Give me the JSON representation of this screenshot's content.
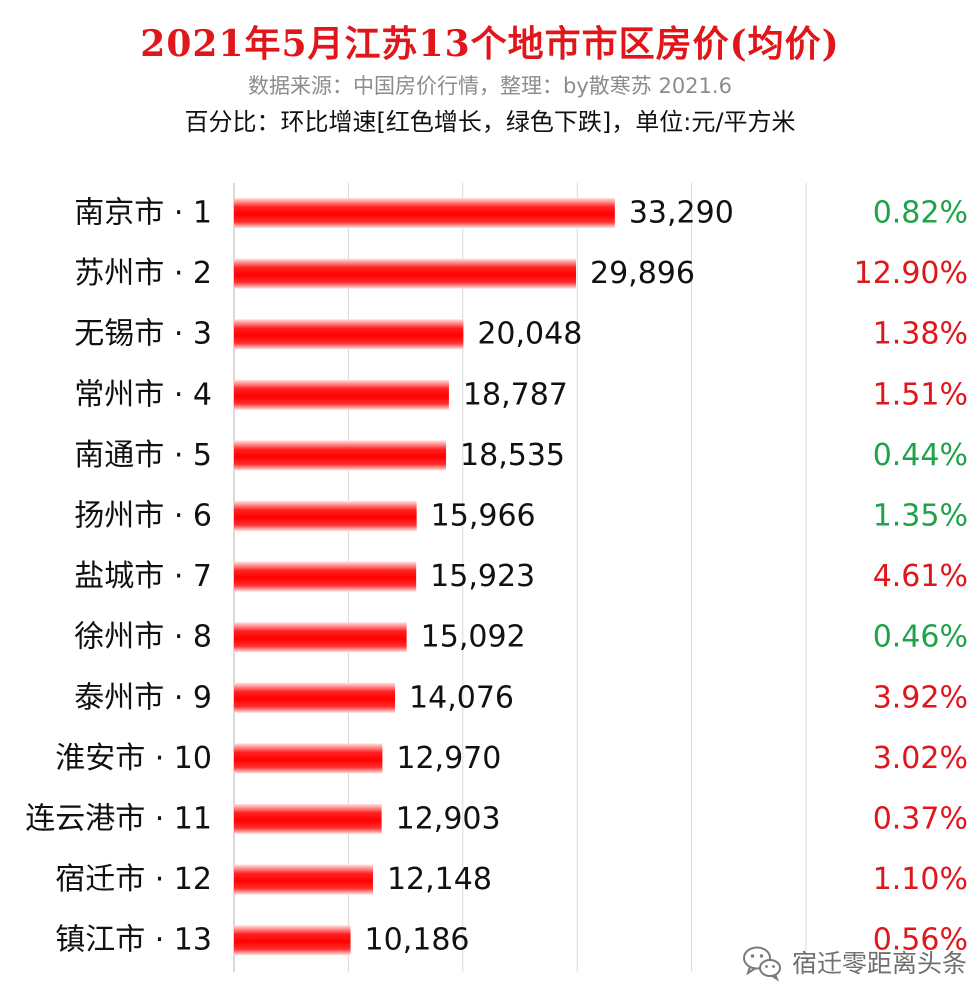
{
  "header": {
    "title": "2021年5月江苏13个地市市区房价(均价)",
    "subtitle": "数据来源：中国房价行情，整理：by散寒苏 2021.6",
    "note": "百分比：环比增速[红色增长，绿色下跌]，单位:元/平方米"
  },
  "watermark": {
    "icon": "wechat-icon",
    "text": "宿迁零距离头条"
  },
  "colors": {
    "bar": "#ff0000",
    "growth": "#e0161a",
    "decline": "#1ea34b",
    "grid": "#d9d9d9"
  },
  "chart_data": {
    "type": "bar",
    "orientation": "horizontal",
    "grid": true,
    "xlim": [
      0,
      50000
    ],
    "categories": [
      "南京市 · 1",
      "苏州市 · 2",
      "无锡市 · 3",
      "常州市 · 4",
      "南通市 · 5",
      "扬州市 · 6",
      "盐城市 · 7",
      "徐州市 · 8",
      "泰州市 · 9",
      "淮安市 · 10",
      "连云港市 · 11",
      "宿迁市 · 12",
      "镇江市 · 13"
    ],
    "values": [
      33290,
      29896,
      20048,
      18787,
      18535,
      15966,
      15923,
      15092,
      14076,
      12970,
      12903,
      12148,
      10186
    ],
    "value_labels": [
      "33,290",
      "29,896",
      "20,048",
      "18,787",
      "18,535",
      "15,966",
      "15,923",
      "15,092",
      "14,076",
      "12,970",
      "12,903",
      "12,148",
      "10,186"
    ],
    "change_labels": [
      "0.82%",
      "12.90%",
      "1.38%",
      "1.51%",
      "0.44%",
      "1.35%",
      "4.61%",
      "0.46%",
      "3.92%",
      "3.02%",
      "0.37%",
      "1.10%",
      "0.56%"
    ],
    "change_direction": [
      "down",
      "up",
      "up",
      "up",
      "down",
      "down",
      "up",
      "down",
      "up",
      "up",
      "up",
      "up",
      "up"
    ]
  }
}
